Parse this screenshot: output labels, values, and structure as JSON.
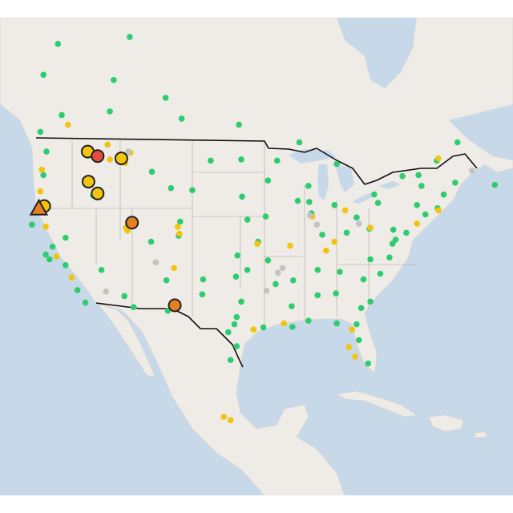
{
  "map": {
    "markers": [
      {
        "color": "#2ecc71",
        "points": [
          [
            47.6,
            -122.3
          ],
          [
            45.5,
            -122.7
          ],
          [
            47.7,
            -117.4
          ],
          [
            43.6,
            -116.2
          ],
          [
            37.8,
            -122.4
          ],
          [
            37.3,
            -121.9
          ],
          [
            38.6,
            -121.5
          ],
          [
            36.7,
            -119.8
          ],
          [
            34.05,
            -118.25
          ],
          [
            32.7,
            -117.2
          ],
          [
            36.2,
            -115.1
          ],
          [
            33.4,
            -112.1
          ],
          [
            32.2,
            -110.9
          ],
          [
            35.1,
            -106.6
          ],
          [
            31.8,
            -106.4
          ],
          [
            39.7,
            -105.0
          ],
          [
            45.8,
            -108.5
          ],
          [
            46.8,
            -100.8
          ],
          [
            44.1,
            -103.2
          ],
          [
            41.1,
            -104.8
          ],
          [
            41.3,
            -96.0
          ],
          [
            39.1,
            -94.6
          ],
          [
            37.7,
            -97.3
          ],
          [
            35.5,
            -97.5
          ],
          [
            32.8,
            -96.8
          ],
          [
            30.3,
            -97.7
          ],
          [
            29.4,
            -98.5
          ],
          [
            27.8,
            -97.4
          ],
          [
            30.0,
            -90.1
          ],
          [
            32.3,
            -90.2
          ],
          [
            35.1,
            -90.0
          ],
          [
            34.7,
            -92.3
          ],
          [
            45.0,
            -93.3
          ],
          [
            41.6,
            -93.6
          ],
          [
            41.9,
            -87.6
          ],
          [
            43.0,
            -87.9
          ],
          [
            39.8,
            -86.2
          ],
          [
            40.0,
            -83.0
          ],
          [
            36.2,
            -86.8
          ],
          [
            33.7,
            -84.4
          ],
          [
            33.5,
            -86.8
          ],
          [
            35.2,
            -80.8
          ],
          [
            35.8,
            -78.6
          ],
          [
            37.5,
            -77.4
          ],
          [
            38.9,
            -77.0
          ],
          [
            39.3,
            -76.6
          ],
          [
            40.0,
            -75.2
          ],
          [
            42.4,
            -71.1
          ],
          [
            43.7,
            -70.3
          ],
          [
            44.8,
            -68.8
          ],
          [
            44.5,
            -73.2
          ],
          [
            42.7,
            -73.8
          ],
          [
            42.9,
            -78.9
          ],
          [
            40.4,
            -80.0
          ],
          [
            41.5,
            -81.7
          ],
          [
            30.3,
            -81.7
          ],
          [
            28.5,
            -81.4
          ],
          [
            25.8,
            -80.2
          ],
          [
            30.4,
            -84.3
          ],
          [
            32.1,
            -81.1
          ],
          [
            32.8,
            -79.9
          ],
          [
            30.7,
            -88.0
          ],
          [
            43.7,
            -79.4
          ],
          [
            45.5,
            -73.6
          ],
          [
            45.4,
            -75.7
          ],
          [
            46.8,
            -71.2
          ],
          [
            44.6,
            -63.6
          ],
          [
            49.9,
            -97.1
          ],
          [
            50.4,
            -104.6
          ],
          [
            52.1,
            -106.7
          ],
          [
            51.0,
            -114.0
          ],
          [
            53.5,
            -113.5
          ],
          [
            49.3,
            -123.1
          ],
          [
            50.7,
            -120.3
          ],
          [
            48.4,
            -89.2
          ],
          [
            46.8,
            -92.1
          ],
          [
            46.9,
            -96.8
          ],
          [
            43.5,
            -96.7
          ],
          [
            44.5,
            -88.0
          ],
          [
            42.7,
            -84.6
          ],
          [
            43.1,
            -89.4
          ],
          [
            36.0,
            -83.9
          ],
          [
            37.3,
            -79.9
          ],
          [
            40.3,
            -76.9
          ],
          [
            41.8,
            -72.7
          ],
          [
            33.6,
            -101.9
          ],
          [
            35.2,
            -101.8
          ],
          [
            36.2,
            -96.0
          ],
          [
            37.2,
            -93.3
          ],
          [
            39.5,
            -119.8
          ],
          [
            42.3,
            -122.9
          ],
          [
            40.8,
            -124.2
          ],
          [
            39.1,
            -108.6
          ],
          [
            56.7,
            -111.4
          ],
          [
            53.9,
            -122.7
          ],
          [
            56.2,
            -120.8
          ],
          [
            46.2,
            -60.2
          ],
          [
            47.5,
            -52.8
          ],
          [
            48.4,
            -68.5
          ],
          [
            46.5,
            -84.3
          ],
          [
            29.95,
            -93.9
          ],
          [
            26.2,
            -98.2
          ],
          [
            31.1,
            -97.4
          ],
          [
            44.3,
            -106.0
          ]
        ]
      },
      {
        "color": "#f1c40f",
        "points": [
          [
            35.4,
            -119.0
          ],
          [
            37.6,
            -121.0
          ],
          [
            40.6,
            -122.4
          ],
          [
            40.5,
            -111.9
          ],
          [
            40.2,
            -111.7
          ],
          [
            39.9,
            -104.9
          ],
          [
            48.2,
            -114.3
          ],
          [
            46.9,
            -114.0
          ],
          [
            46.6,
            -112.0
          ],
          [
            47.5,
            -111.3
          ],
          [
            39.1,
            -84.6
          ],
          [
            38.2,
            -85.7
          ],
          [
            40.5,
            -79.9
          ],
          [
            40.9,
            -73.8
          ],
          [
            27.7,
            -82.7
          ],
          [
            26.6,
            -81.9
          ],
          [
            29.7,
            -82.3
          ],
          [
            30.4,
            -91.2
          ],
          [
            29.7,
            -95.2
          ],
          [
            19.4,
            -99.1
          ],
          [
            19.0,
            -98.2
          ],
          [
            41.6,
            -87.5
          ],
          [
            42.2,
            -83.2
          ],
          [
            38.7,
            -90.4
          ],
          [
            38.9,
            -94.7
          ],
          [
            40.6,
            -105.1
          ],
          [
            49.9,
            -119.5
          ],
          [
            42.2,
            -71.0
          ],
          [
            47.0,
            -71.0
          ],
          [
            36.4,
            -105.6
          ],
          [
            44.0,
            -123.1
          ],
          [
            46.0,
            -122.9
          ]
        ]
      },
      {
        "color": "#c3c3c3",
        "points": [
          [
            41.7,
            -87.8
          ],
          [
            40.8,
            -86.9
          ],
          [
            35.9,
            -92.0
          ],
          [
            36.4,
            -91.4
          ],
          [
            34.0,
            -93.5
          ],
          [
            40.9,
            -81.4
          ],
          [
            37.0,
            -108.0
          ],
          [
            47.6,
            -111.6
          ],
          [
            33.9,
            -114.5
          ],
          [
            45.9,
            -66.6
          ]
        ]
      }
    ],
    "large_markers": [
      {
        "lat": 47.6,
        "lon": -116.9,
        "color": "#f1c40f",
        "shape": "circle"
      },
      {
        "lat": 47.0,
        "lon": -112.5,
        "color": "#f1c40f",
        "shape": "circle"
      },
      {
        "lat": 44.9,
        "lon": -116.8,
        "color": "#f1c40f",
        "shape": "circle"
      },
      {
        "lat": 43.8,
        "lon": -115.6,
        "color": "#f1c40f",
        "shape": "circle"
      },
      {
        "lat": 42.6,
        "lon": -122.6,
        "color": "#f1c40f",
        "shape": "circle"
      },
      {
        "lat": 47.2,
        "lon": -115.6,
        "color": "#e74c3c",
        "shape": "circle"
      },
      {
        "lat": 41.0,
        "lon": -111.1,
        "color": "#e67e22",
        "shape": "circle"
      },
      {
        "lat": 32.4,
        "lon": -105.5,
        "color": "#e67e22",
        "shape": "circle"
      },
      {
        "lat": 42.4,
        "lon": -123.3,
        "color": "#e67e22",
        "shape": "triangle"
      }
    ]
  }
}
